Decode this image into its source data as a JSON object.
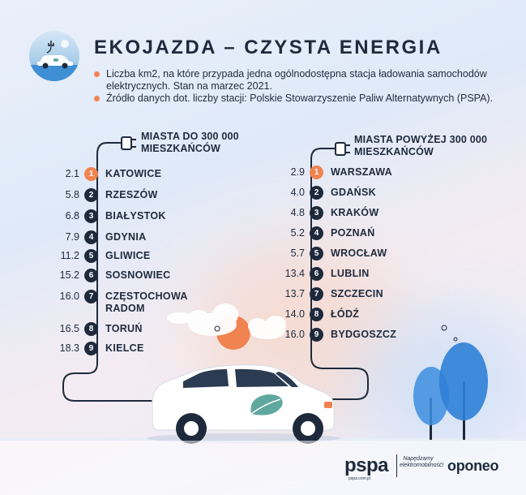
{
  "header": {
    "title": "EKOJAZDA – CZYSTA ENERGIA",
    "notes": [
      "Liczba km2, na które przypada jedna ogólnodostępna stacja ładowania samochodów elektrycznych. Stan na marzec 2021.",
      "Źródło danych dot. liczby stacji: Polskie Stowarzyszenie Paliw Alternatywnych (PSPA)."
    ]
  },
  "left_column": {
    "title_line1": "MIASTA DO 300 000",
    "title_line2": "MIESZKAŃCÓW",
    "rows": [
      {
        "value": "2.1",
        "rank": "1",
        "city": "KATOWICE"
      },
      {
        "value": "5.8",
        "rank": "2",
        "city": "RZESZÓW"
      },
      {
        "value": "6.8",
        "rank": "3",
        "city": "BIAŁYSTOK"
      },
      {
        "value": "7.9",
        "rank": "4",
        "city": "GDYNIA"
      },
      {
        "value": "11.2",
        "rank": "5",
        "city": "GLIWICE"
      },
      {
        "value": "15.2",
        "rank": "6",
        "city": "SOSNOWIEC"
      },
      {
        "value": "16.0",
        "rank": "7",
        "city": "CZĘSTOCHOWA",
        "city2": "RADOM"
      },
      {
        "value": "16.5",
        "rank": "8",
        "city": "TORUŃ"
      },
      {
        "value": "18.3",
        "rank": "9",
        "city": "KIELCE"
      }
    ]
  },
  "right_column": {
    "title_line1": "MIASTA POWYŻEJ 300 000",
    "title_line2": "MIESZKAŃCÓW",
    "rows": [
      {
        "value": "2.9",
        "rank": "1",
        "city": "WARSZAWA"
      },
      {
        "value": "4.0",
        "rank": "2",
        "city": "GDAŃSK"
      },
      {
        "value": "4.8",
        "rank": "3",
        "city": "KRAKÓW"
      },
      {
        "value": "5.2",
        "rank": "4",
        "city": "POZNAŃ"
      },
      {
        "value": "5.7",
        "rank": "5",
        "city": "WROCŁAW"
      },
      {
        "value": "13.4",
        "rank": "6",
        "city": "LUBLIN"
      },
      {
        "value": "13.7",
        "rank": "7",
        "city": "SZCZECIN"
      },
      {
        "value": "14.0",
        "rank": "8",
        "city": "ŁÓDŹ"
      },
      {
        "value": "16.0",
        "rank": "9",
        "city": "BYDGOSZCZ"
      }
    ]
  },
  "footer": {
    "brand1": "pspa",
    "brand1_url": "pspa.com.pl",
    "slogan": "Napędzamy elektromobilność!",
    "brand2": "oponeo"
  },
  "colors": {
    "accent": "#f0834f",
    "dark": "#1e2a3c",
    "leaf": "#5fa8a0",
    "tree": "#3d8ee0"
  }
}
